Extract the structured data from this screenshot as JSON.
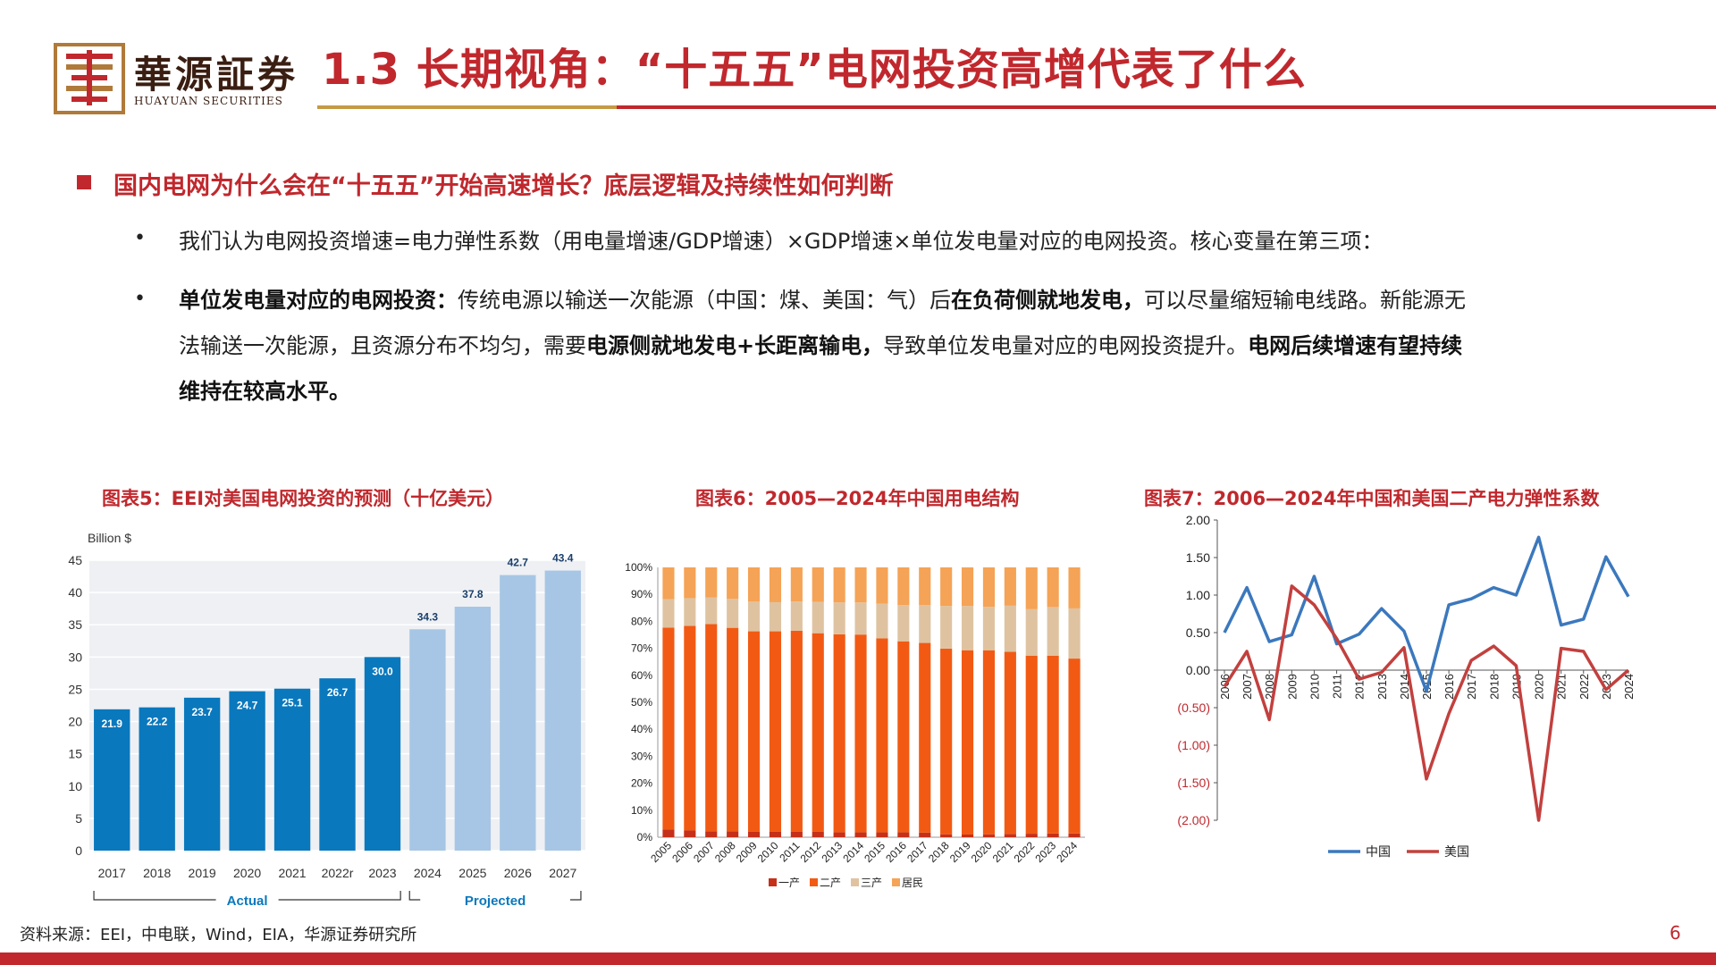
{
  "header": {
    "logo_name": "華源証券",
    "logo_sub": "HUAYUAN SECURITIES",
    "title": "1.3 长期视角：“十五五”电网投资高增代表了什么",
    "accent_color": "#c0282d",
    "gold_color": "#c49a45"
  },
  "section": {
    "heading": "国内电网为什么会在“十五五”开始高速增长？底层逻辑及持续性如何判断"
  },
  "bullets": [
    {
      "dot": "•",
      "text": "我们认为电网投资增速=电力弹性系数（用电量增速/GDP增速）×GDP增速×单位发电量对应的电网投资。核心变量在第三项："
    },
    {
      "dot": "•",
      "b1": "单位发电量对应的电网投资：",
      "t1": "传统电源以输送一次能源（中国：煤、美国：气）后",
      "b2": "在负荷侧就地发电，",
      "t2": "可以尽量缩短输电线路。新能源无",
      "t3": "法输送一次能源，且资源分布不均匀，需要",
      "b3": "电源侧就地发电+长距离输电，",
      "t4": "导致单位发电量对应的电网投资提升。",
      "b4": "电网后续增速有望持续",
      "b5": "维持在较高水平。"
    }
  ],
  "figures": {
    "fig5_title": "图表5：EEI对美国电网投资的预测（十亿美元）",
    "fig6_title": "图表6：2005—2024年中国用电结构",
    "fig7_title": "图表7：2006—2024年中国和美国二产电力弹性系数"
  },
  "chart_data": [
    {
      "type": "bar",
      "unit_label": "Billion $",
      "categories": [
        "2017",
        "2018",
        "2019",
        "2020",
        "2021",
        "2022r",
        "2023",
        "2024",
        "2025",
        "2026",
        "2027"
      ],
      "values": [
        21.9,
        22.2,
        23.7,
        24.7,
        25.1,
        26.7,
        30.0,
        34.3,
        37.8,
        42.7,
        43.4
      ],
      "value_labels": [
        "21.9",
        "22.2",
        "23.7",
        "24.7",
        "25.1",
        "26.7",
        "30.0",
        "34.3",
        "37.8",
        "42.7",
        "43.4"
      ],
      "yticks": [
        "0",
        "5",
        "10",
        "15",
        "20",
        "25",
        "30",
        "35",
        "40",
        "45"
      ],
      "ylim": [
        0,
        45
      ],
      "groups": {
        "actual_label": "Actual",
        "projected_label": "Projected",
        "actual_count": 7
      },
      "colors": {
        "actual": "#0a78bd",
        "projected": "#a7c6e5"
      }
    },
    {
      "type": "bar",
      "stacked": true,
      "categories": [
        "2005",
        "2006",
        "2007",
        "2008",
        "2009",
        "2010",
        "2011",
        "2012",
        "2013",
        "2014",
        "2015",
        "2016",
        "2017",
        "2018",
        "2019",
        "2020",
        "2021",
        "2022",
        "2023",
        "2024"
      ],
      "yticks": [
        "0%",
        "10%",
        "20%",
        "30%",
        "40%",
        "50%",
        "60%",
        "70%",
        "80%",
        "90%",
        "100%"
      ],
      "series": [
        {
          "name": "一产",
          "color": "#c5301a",
          "values": [
            2.8,
            2.5,
            2.2,
            2.2,
            2.1,
            2.1,
            2.1,
            2.0,
            1.8,
            1.8,
            1.8,
            1.8,
            1.7,
            1.1,
            1.0,
            1.1,
            1.2,
            1.3,
            1.4,
            1.4
          ]
        },
        {
          "name": "二产",
          "color": "#f25a13",
          "values": [
            74.9,
            75.8,
            76.8,
            75.4,
            74.2,
            74.2,
            74.4,
            73.6,
            73.4,
            73.3,
            71.9,
            70.8,
            70.3,
            68.8,
            68.3,
            68.2,
            67.5,
            66.0,
            65.9,
            64.8
          ]
        },
        {
          "name": "三产",
          "color": "#dfc3a1",
          "values": [
            10.5,
            10.3,
            9.9,
            10.7,
            11.0,
            10.8,
            10.9,
            11.6,
            11.8,
            11.9,
            12.8,
            13.4,
            14.0,
            15.8,
            16.4,
            16.1,
            17.1,
            17.2,
            18.0,
            18.6
          ]
        },
        {
          "name": "居民",
          "color": "#f5a356",
          "values": [
            11.8,
            11.4,
            11.1,
            11.7,
            12.7,
            12.9,
            12.6,
            12.8,
            13.0,
            13.0,
            13.5,
            14.0,
            14.0,
            14.3,
            14.3,
            14.6,
            14.2,
            15.5,
            14.7,
            15.2
          ]
        }
      ],
      "ylim": [
        0,
        100
      ]
    },
    {
      "type": "line",
      "x": [
        "2006",
        "2007",
        "2008",
        "2009",
        "2010",
        "2011",
        "2012",
        "2013",
        "2014",
        "2015",
        "2016",
        "2017",
        "2018",
        "2019",
        "2020",
        "2021",
        "2022",
        "2023",
        "2024"
      ],
      "yticks": [
        "2.00",
        "1.50",
        "1.00",
        "0.50",
        "0.00",
        "(0.50)",
        "(1.00)",
        "(1.50)",
        "(2.00)"
      ],
      "ylim": [
        -2,
        2
      ],
      "series": [
        {
          "name": "中国",
          "color": "#3b78bd",
          "values": [
            0.5,
            1.1,
            0.38,
            0.47,
            1.25,
            0.35,
            0.48,
            0.82,
            0.52,
            -0.28,
            0.87,
            0.95,
            1.1,
            1.0,
            1.77,
            0.6,
            0.68,
            1.51,
            0.98
          ]
        },
        {
          "name": "美国",
          "color": "#c2403e",
          "values": [
            -0.22,
            0.25,
            -0.66,
            1.12,
            0.87,
            0.42,
            -0.12,
            -0.03,
            0.3,
            -1.45,
            -0.58,
            0.13,
            0.32,
            0.06,
            -2.0,
            0.29,
            0.25,
            -0.26,
            0.0
          ]
        }
      ]
    }
  ],
  "footer": {
    "source": "资料来源：EEI，中电联，Wind，EIA，华源证券研究所",
    "page_number": "6"
  }
}
